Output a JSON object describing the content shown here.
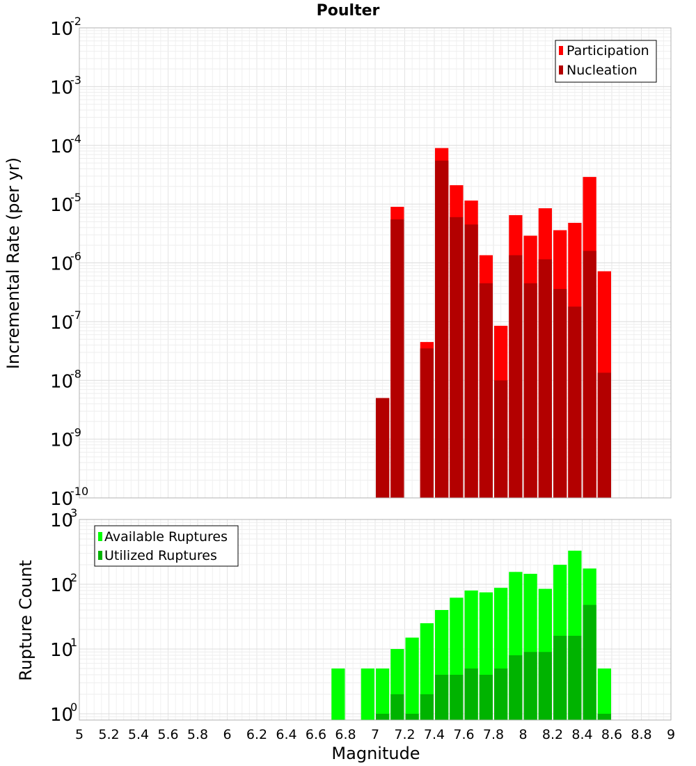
{
  "chart_data": [
    {
      "type": "bar",
      "title": "Poulter",
      "xlabel": "",
      "ylabel": "Incremental Rate (per yr)",
      "yscale": "log",
      "ylim": [
        1e-10,
        0.01
      ],
      "xlim": [
        5,
        9
      ],
      "bin_width": 0.1,
      "y_ticks": [
        {
          "base": "10",
          "exp": "-10"
        },
        {
          "base": "10",
          "exp": "-9"
        },
        {
          "base": "10",
          "exp": "-8"
        },
        {
          "base": "10",
          "exp": "-7"
        },
        {
          "base": "10",
          "exp": "-6"
        },
        {
          "base": "10",
          "exp": "-5"
        },
        {
          "base": "10",
          "exp": "-4"
        },
        {
          "base": "10",
          "exp": "-3"
        },
        {
          "base": "10",
          "exp": "-2"
        }
      ],
      "x": [
        7.05,
        7.15,
        7.35,
        7.45,
        7.55,
        7.65,
        7.75,
        7.85,
        7.95,
        8.05,
        8.15,
        8.25,
        8.35,
        8.45,
        8.55
      ],
      "series": [
        {
          "name": "Participation",
          "color": "#ff0000",
          "values": [
            5e-09,
            9e-06,
            4.5e-08,
            9e-05,
            2.1e-05,
            1.15e-05,
            1.35e-06,
            8.5e-08,
            6.5e-06,
            2.9e-06,
            8.5e-06,
            3.6e-06,
            4.8e-06,
            2.9e-05,
            7.2e-07
          ]
        },
        {
          "name": "Nucleation",
          "color": "#b30000",
          "values": [
            5e-09,
            5.5e-06,
            3.5e-08,
            5.5e-05,
            6e-06,
            4.5e-06,
            4.5e-07,
            1e-08,
            1.35e-06,
            4.5e-07,
            1.15e-06,
            3.6e-07,
            1.8e-07,
            1.6e-06,
            1.35e-08
          ]
        }
      ],
      "legend": {
        "position": "top-right",
        "entries": [
          "Participation",
          "Nucleation"
        ]
      }
    },
    {
      "type": "bar",
      "title": "",
      "xlabel": "Magnitude",
      "ylabel": "Rupture Count",
      "yscale": "log",
      "ylim": [
        0.8,
        1000
      ],
      "xlim": [
        5,
        9
      ],
      "bin_width": 0.1,
      "y_ticks": [
        {
          "base": "10",
          "exp": "0"
        },
        {
          "base": "10",
          "exp": "1"
        },
        {
          "base": "10",
          "exp": "2"
        },
        {
          "base": "10",
          "exp": "3"
        }
      ],
      "x_tick_labels": [
        "5",
        "5.2",
        "5.4",
        "5.6",
        "5.8",
        "6",
        "6.2",
        "6.4",
        "6.6",
        "6.8",
        "7",
        "7.2",
        "7.4",
        "7.6",
        "7.8",
        "8",
        "8.2",
        "8.4",
        "8.6",
        "8.8",
        "9"
      ],
      "x": [
        6.75,
        6.95,
        7.05,
        7.15,
        7.25,
        7.35,
        7.45,
        7.55,
        7.65,
        7.75,
        7.85,
        7.95,
        8.05,
        8.15,
        8.25,
        8.35,
        8.45,
        8.55
      ],
      "series": [
        {
          "name": "Available Ruptures",
          "color": "#00ff00",
          "values": [
            5,
            5,
            5,
            10,
            15,
            25,
            40,
            62,
            80,
            75,
            88,
            155,
            145,
            85,
            200,
            330,
            175,
            5
          ]
        },
        {
          "name": "Utilized Ruptures",
          "color": "#00b300",
          "values": [
            0,
            0,
            1,
            2,
            1,
            2,
            4,
            4,
            5,
            4,
            5,
            8,
            9,
            9,
            16,
            16,
            48,
            1
          ]
        }
      ],
      "legend": {
        "position": "top-left",
        "entries": [
          "Available Ruptures",
          "Utilized Ruptures"
        ]
      }
    }
  ]
}
